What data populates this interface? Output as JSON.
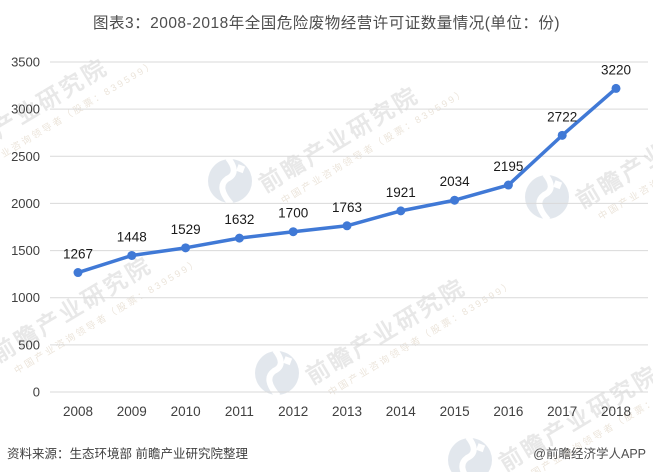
{
  "title": "图表3：2008-2018年全国危险废物经营许可证数量情况(单位：份)",
  "footer": {
    "source": "资料来源：生态环境部 前瞻产业研究院整理",
    "credit": "@前瞻经济学人APP"
  },
  "watermark": {
    "main": "前瞻产业研究院",
    "sub": "中国产业咨询领导者（股票：839599）"
  },
  "colors": {
    "line": "#4079d6",
    "grid": "#d9d9d9",
    "axis_text": "#404040",
    "label_text": "#1a1a1a",
    "title_text": "#4d4d4d",
    "watermark_circle": "#ccd5df"
  },
  "chart_data": {
    "type": "line",
    "title": "图表3：2008-2018年全国危险废物经营许可证数量情况(单位：份)",
    "categories": [
      "2008",
      "2009",
      "2010",
      "2011",
      "2012",
      "2013",
      "2014",
      "2015",
      "2016",
      "2017",
      "2018"
    ],
    "series": [
      {
        "name": "全国危险废物经营许可证数量(份)",
        "values": [
          1267,
          1448,
          1529,
          1632,
          1700,
          1763,
          1921,
          2034,
          2195,
          2722,
          3220
        ]
      }
    ],
    "xlabel": "",
    "ylabel": "",
    "ylim": [
      0,
      3500
    ],
    "ytick_step": 500,
    "grid": true,
    "legend_position": "none",
    "data_labels": true,
    "marker": "circle"
  }
}
